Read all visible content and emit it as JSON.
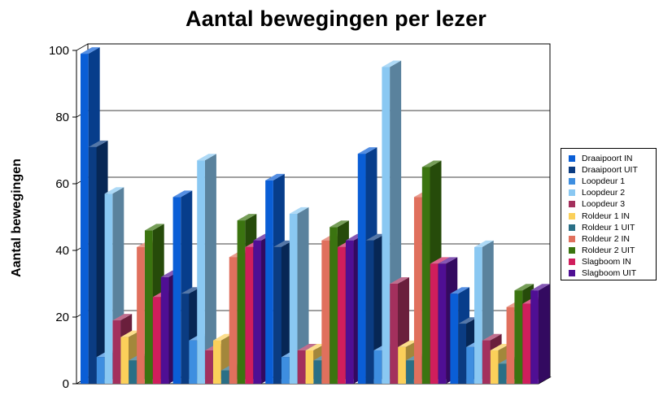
{
  "chart_data": {
    "type": "bar",
    "title": "Aantal bewegingen per lezer",
    "ylabel": "Aantal bewegingen",
    "xlabel": "",
    "ylim": [
      0,
      100
    ],
    "yticks": [
      0,
      20,
      40,
      60,
      80,
      100
    ],
    "grid": true,
    "legend_position": "right",
    "three_d": true,
    "groups": 5,
    "series": [
      {
        "name": "Draaipoort IN",
        "color": "#0A5ED6",
        "values": [
          99,
          56,
          61,
          69,
          27
        ]
      },
      {
        "name": "Draaipoort UIT",
        "color": "#0B3C82",
        "values": [
          71,
          27,
          41,
          43,
          18
        ]
      },
      {
        "name": "Loopdeur 1",
        "color": "#3E8EE0",
        "values": [
          8,
          13,
          8,
          10,
          11
        ]
      },
      {
        "name": "Loopdeur 2",
        "color": "#8AC8F2",
        "values": [
          57,
          67,
          51,
          95,
          41
        ]
      },
      {
        "name": "Loopdeur 3",
        "color": "#A3305D",
        "values": [
          19,
          10,
          10,
          30,
          13
        ]
      },
      {
        "name": "Roldeur 1 IN",
        "color": "#FBD05A",
        "values": [
          14,
          13,
          10,
          11,
          10
        ]
      },
      {
        "name": "Roldeur 1 UIT",
        "color": "#2A6F86",
        "values": [
          7,
          4,
          7,
          7,
          6
        ]
      },
      {
        "name": "Roldeur 2 IN",
        "color": "#E0705D",
        "values": [
          41,
          38,
          43,
          56,
          23
        ]
      },
      {
        "name": "Roldeur 2 UIT",
        "color": "#3B7410",
        "values": [
          46,
          49,
          47,
          65,
          28
        ]
      },
      {
        "name": "Slagboom IN",
        "color": "#D01E5C",
        "values": [
          26,
          41,
          41,
          36,
          24
        ]
      },
      {
        "name": "Slagboom UIT",
        "color": "#4F0F94",
        "values": [
          32,
          43,
          43,
          36,
          28
        ]
      }
    ]
  }
}
